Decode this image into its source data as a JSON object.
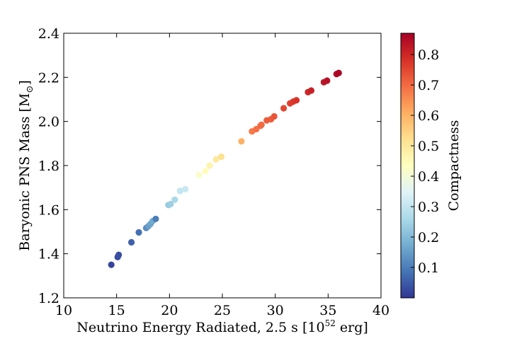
{
  "chart_data": {
    "type": "scatter",
    "title": "",
    "xlabel": "Neutrino Energy Radiated, 2.5 s [10",
    "xlabel_exponent": "52",
    "xlabel_unit": " erg]",
    "ylabel": "Baryonic PNS Mass [M",
    "ylabel_subscript": "⊙",
    "ylabel_end": "]",
    "xlim": [
      10,
      40
    ],
    "ylim": [
      1.2,
      2.4
    ],
    "xticks": [
      "10",
      "15",
      "20",
      "25",
      "30",
      "35",
      "40"
    ],
    "yticks": [
      "1.2",
      "1.4",
      "1.6",
      "1.8",
      "2.0",
      "2.2",
      "2.4"
    ],
    "grid": false,
    "colorbar": {
      "label": "Compactness",
      "range": [
        0,
        0.87
      ],
      "ticks": [
        "0.1",
        "0.2",
        "0.3",
        "0.4",
        "0.5",
        "0.6",
        "0.7",
        "0.8"
      ],
      "tick_values": [
        0.1,
        0.2,
        0.3,
        0.4,
        0.5,
        0.6,
        0.7,
        0.8
      ],
      "colormap": [
        "#313695",
        "#4575b4",
        "#74add1",
        "#abd9e9",
        "#e0f3f8",
        "#ffffbf",
        "#fee090",
        "#fdae61",
        "#f46d43",
        "#d73027",
        "#a50026"
      ]
    },
    "points": [
      {
        "x": 14.5,
        "y": 1.35,
        "c": 0.02
      },
      {
        "x": 15.1,
        "y": 1.385,
        "c": 0.03
      },
      {
        "x": 15.2,
        "y": 1.395,
        "c": 0.035
      },
      {
        "x": 16.4,
        "y": 1.452,
        "c": 0.06
      },
      {
        "x": 17.1,
        "y": 1.497,
        "c": 0.08
      },
      {
        "x": 17.8,
        "y": 1.517,
        "c": 0.12
      },
      {
        "x": 18.0,
        "y": 1.525,
        "c": 0.15
      },
      {
        "x": 18.2,
        "y": 1.535,
        "c": 0.16
      },
      {
        "x": 18.4,
        "y": 1.548,
        "c": 0.17
      },
      {
        "x": 18.7,
        "y": 1.558,
        "c": 0.1
      },
      {
        "x": 19.9,
        "y": 1.621,
        "c": 0.23
      },
      {
        "x": 20.1,
        "y": 1.625,
        "c": 0.24
      },
      {
        "x": 20.5,
        "y": 1.645,
        "c": 0.26
      },
      {
        "x": 21.0,
        "y": 1.685,
        "c": 0.3
      },
      {
        "x": 21.5,
        "y": 1.693,
        "c": 0.31
      },
      {
        "x": 22.8,
        "y": 1.757,
        "c": 0.42
      },
      {
        "x": 23.4,
        "y": 1.775,
        "c": 0.44
      },
      {
        "x": 23.8,
        "y": 1.8,
        "c": 0.47
      },
      {
        "x": 24.4,
        "y": 1.828,
        "c": 0.5
      },
      {
        "x": 24.9,
        "y": 1.84,
        "c": 0.52
      },
      {
        "x": 26.8,
        "y": 1.91,
        "c": 0.6
      },
      {
        "x": 27.8,
        "y": 1.955,
        "c": 0.68
      },
      {
        "x": 28.2,
        "y": 1.965,
        "c": 0.69
      },
      {
        "x": 28.6,
        "y": 1.98,
        "c": 0.7
      },
      {
        "x": 28.7,
        "y": 1.985,
        "c": 0.7
      },
      {
        "x": 29.2,
        "y": 2.005,
        "c": 0.72
      },
      {
        "x": 29.6,
        "y": 2.01,
        "c": 0.72
      },
      {
        "x": 29.9,
        "y": 2.023,
        "c": 0.73
      },
      {
        "x": 30.8,
        "y": 2.06,
        "c": 0.75
      },
      {
        "x": 31.4,
        "y": 2.082,
        "c": 0.76
      },
      {
        "x": 31.7,
        "y": 2.09,
        "c": 0.77
      },
      {
        "x": 32.0,
        "y": 2.096,
        "c": 0.78
      },
      {
        "x": 33.1,
        "y": 2.133,
        "c": 0.8
      },
      {
        "x": 33.4,
        "y": 2.14,
        "c": 0.81
      },
      {
        "x": 34.6,
        "y": 2.178,
        "c": 0.83
      },
      {
        "x": 34.9,
        "y": 2.185,
        "c": 0.84
      },
      {
        "x": 35.8,
        "y": 2.215,
        "c": 0.85
      },
      {
        "x": 36.0,
        "y": 2.22,
        "c": 0.86
      }
    ]
  }
}
